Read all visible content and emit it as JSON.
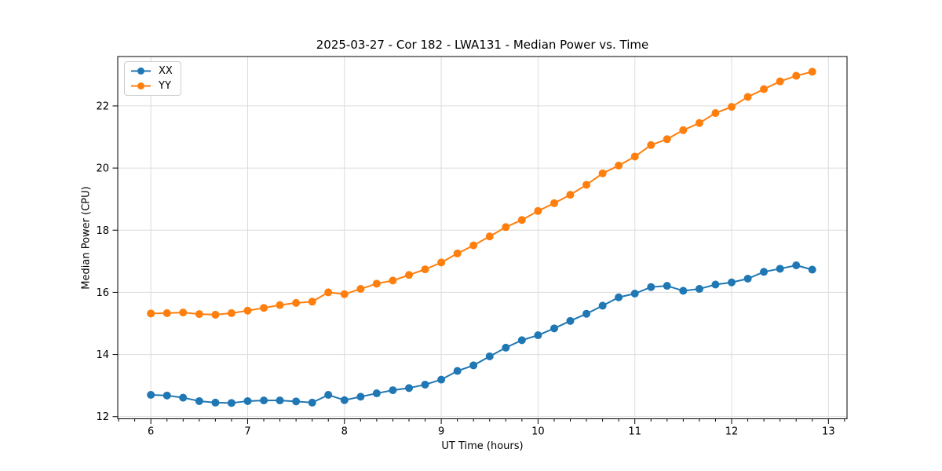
{
  "figure": {
    "background": "#ffffff",
    "spine_color": "#000000",
    "grid_color": "#dcdcdc"
  },
  "chart_data": {
    "type": "line",
    "title": "2025-03-27 - Cor 182 - LWA131 - Median Power vs. Time",
    "xlabel": "UT Time (hours)",
    "ylabel": "Median Power (CPU)",
    "xlim": [
      5.658,
      13.192
    ],
    "ylim": [
      11.93,
      23.59
    ],
    "x_major_ticks": [
      6,
      7,
      8,
      9,
      10,
      11,
      12,
      13
    ],
    "x_minor_tick_step": 0.1666667,
    "y_major_ticks": [
      12,
      14,
      16,
      18,
      20,
      22
    ],
    "grid": "major-both-axes",
    "legend_position": "upper-left",
    "marker": "circle",
    "x": [
      6.0,
      6.167,
      6.333,
      6.5,
      6.667,
      6.833,
      7.0,
      7.167,
      7.333,
      7.5,
      7.667,
      7.833,
      8.0,
      8.167,
      8.333,
      8.5,
      8.667,
      8.833,
      9.0,
      9.167,
      9.333,
      9.5,
      9.667,
      9.833,
      10.0,
      10.167,
      10.333,
      10.5,
      10.667,
      10.833,
      11.0,
      11.167,
      11.333,
      11.5,
      11.667,
      11.833,
      12.0,
      12.167,
      12.333,
      12.5,
      12.667,
      12.833
    ],
    "series": [
      {
        "name": "XX",
        "color": "#1f77b4",
        "values": [
          12.7,
          12.68,
          12.61,
          12.5,
          12.45,
          12.44,
          12.5,
          12.52,
          12.52,
          12.49,
          12.45,
          12.7,
          12.53,
          12.64,
          12.75,
          12.85,
          12.92,
          13.03,
          13.19,
          13.47,
          13.65,
          13.94,
          14.22,
          14.46,
          14.62,
          14.84,
          15.08,
          15.31,
          15.57,
          15.84,
          15.96,
          16.17,
          16.21,
          16.05,
          16.11,
          16.25,
          16.32,
          16.44,
          16.66,
          16.76,
          16.87,
          16.73
        ]
      },
      {
        "name": "YY",
        "color": "#ff7f0e",
        "values": [
          15.32,
          15.33,
          15.35,
          15.3,
          15.28,
          15.33,
          15.41,
          15.5,
          15.59,
          15.66,
          15.7,
          16.0,
          15.94,
          16.11,
          16.28,
          16.38,
          16.56,
          16.74,
          16.96,
          17.25,
          17.51,
          17.8,
          18.1,
          18.33,
          18.62,
          18.87,
          19.14,
          19.46,
          19.83,
          20.08,
          20.37,
          20.74,
          20.93,
          21.22,
          21.45,
          21.77,
          21.97,
          22.29,
          22.54,
          22.79,
          22.97,
          23.1
        ]
      }
    ]
  }
}
